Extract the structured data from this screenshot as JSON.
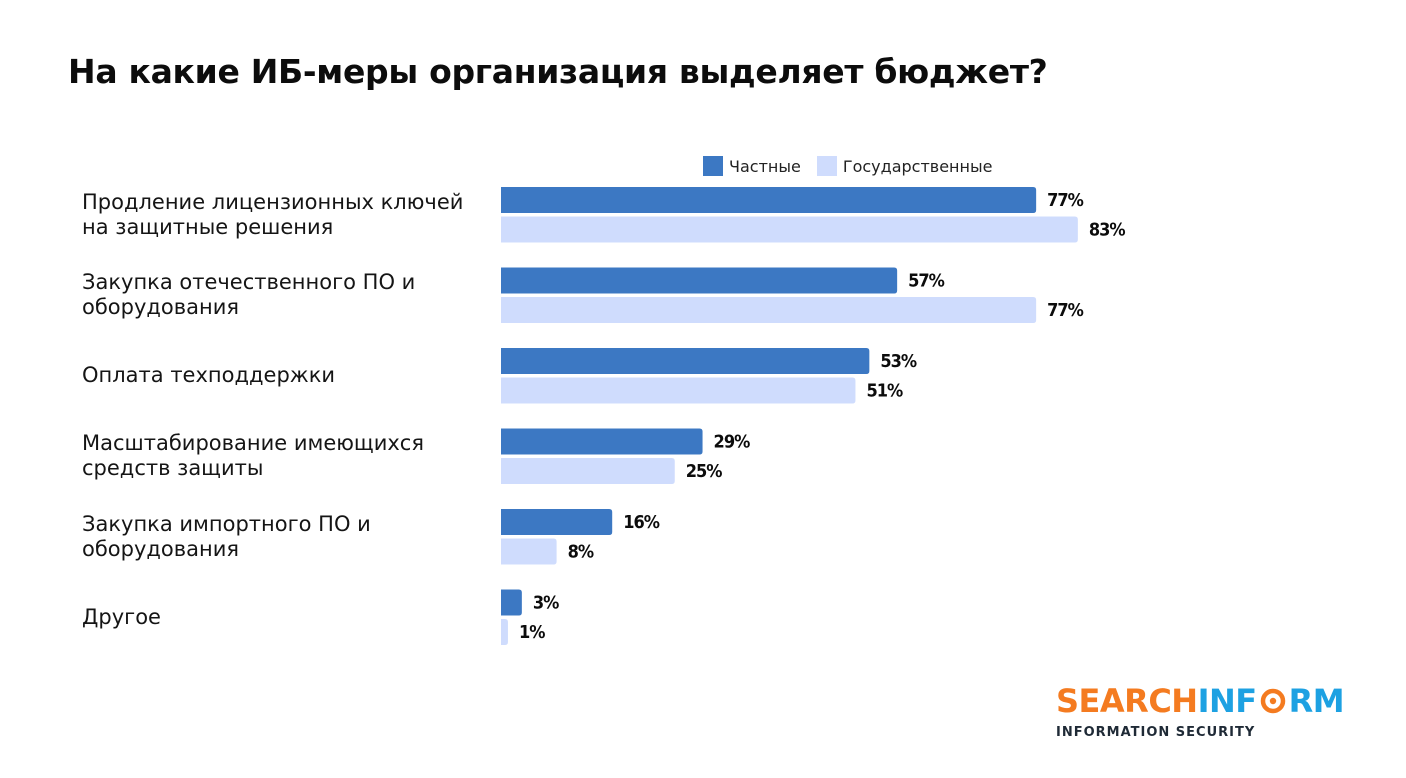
{
  "colors": {
    "private": "#3c78c3",
    "state": "#cfdcfd",
    "logo_orange": "#f47b20",
    "logo_blue": "#1da1e2"
  },
  "chart_data": {
    "type": "bar",
    "orientation": "horizontal",
    "title": "На какие ИБ-меры организация выделяет бюджет?",
    "categories": [
      "Продление лицензионных ключей\nна защитные решения",
      "Закупка отечественного ПО и\nоборудования",
      "Оплата техподдержки",
      "Масштабирование имеющихся\nсредств защиты",
      "Закупка импортного ПО и\nоборудования",
      "Другое"
    ],
    "series": [
      {
        "name": "Частные",
        "color": "#3c78c3",
        "values": [
          77,
          57,
          53,
          29,
          16,
          3
        ]
      },
      {
        "name": "Государственные",
        "color": "#cfdcfd",
        "values": [
          83,
          77,
          51,
          25,
          8,
          1
        ]
      }
    ],
    "value_suffix": "%",
    "xlim": [
      0,
      100
    ],
    "grid": false,
    "legend_position": "top"
  },
  "logo": {
    "part1": "SEARCH",
    "part2": "INF",
    "part3": "RM",
    "tagline": "INFORMATION SECURITY"
  }
}
